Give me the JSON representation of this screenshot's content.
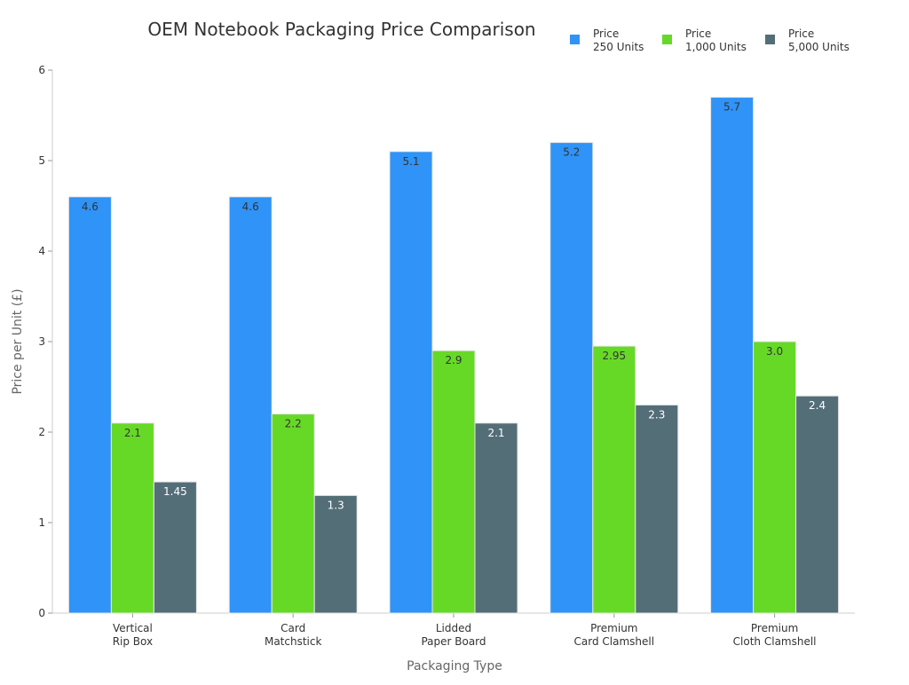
{
  "chart_data": {
    "type": "bar",
    "title": "OEM Notebook Packaging Price Comparison",
    "xlabel": "Packaging Type",
    "ylabel": "Price per Unit (£)",
    "ylim": [
      0,
      6
    ],
    "yticks": [
      "0",
      "1",
      "2",
      "3",
      "4",
      "5",
      "6"
    ],
    "grid": false,
    "legend_placement": "top-right",
    "categories": [
      [
        "Vertical",
        "Rip Box"
      ],
      [
        "Card",
        "Matchstick"
      ],
      [
        "Lidded",
        "Paper Board"
      ],
      [
        "Premium",
        "Card Clamshell"
      ],
      [
        "Premium",
        "Cloth Clamshell"
      ]
    ],
    "series": [
      {
        "name": [
          "Price",
          "250 Units"
        ],
        "color": "#2f93f7",
        "label_color": "#333333",
        "values": [
          4.6,
          4.6,
          5.1,
          5.2,
          5.7
        ],
        "labels": [
          "4.6",
          "4.6",
          "5.1",
          "5.2",
          "5.7"
        ]
      },
      {
        "name": [
          "Price",
          "1,000 Units"
        ],
        "color": "#66d926",
        "label_color": "#333333",
        "values": [
          2.1,
          2.2,
          2.9,
          2.95,
          3.0
        ],
        "labels": [
          "2.1",
          "2.2",
          "2.9",
          "2.95",
          "3.0"
        ]
      },
      {
        "name": [
          "Price",
          "5,000 Units"
        ],
        "color": "#546e78",
        "label_color": "#ffffff",
        "values": [
          1.45,
          1.3,
          2.1,
          2.3,
          2.4
        ],
        "labels": [
          "1.45",
          "1.3",
          "2.1",
          "2.3",
          "2.4"
        ]
      }
    ]
  }
}
